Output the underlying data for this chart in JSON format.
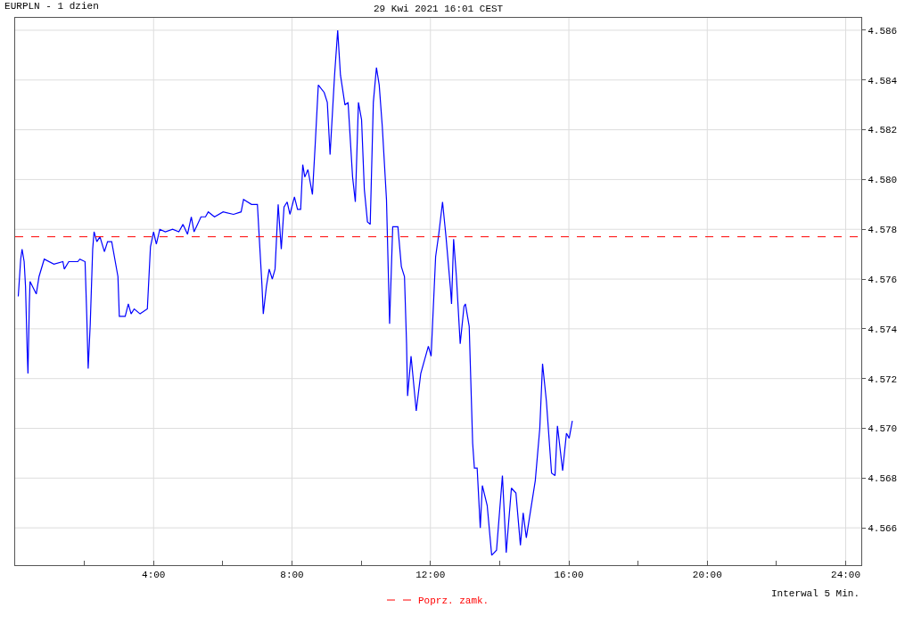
{
  "chart_data": {
    "type": "line",
    "title": "EURPLN - 1 dzien",
    "subtitle": "29 Kwi 2021 16:01 CEST",
    "annotations": [
      "Interwal 5 Min."
    ],
    "x": [
      0.09,
      0.16,
      0.2,
      0.26,
      0.3,
      0.35,
      0.37,
      0.41,
      0.43,
      0.61,
      0.69,
      0.84,
      1.12,
      1.38,
      1.42,
      1.55,
      1.81,
      1.87,
      2.02,
      2.07,
      2.11,
      2.17,
      2.24,
      2.28,
      2.36,
      2.45,
      2.58,
      2.67,
      2.79,
      2.97,
      3.01,
      3.18,
      3.27,
      3.35,
      3.44,
      3.61,
      3.82,
      3.91,
      4.0,
      4.08,
      4.18,
      4.34,
      4.55,
      4.73,
      4.85,
      4.98,
      5.09,
      5.17,
      5.37,
      5.5,
      5.58,
      5.76,
      6.01,
      6.31,
      6.53,
      6.6,
      6.83,
      7.0,
      7.04,
      7.13,
      7.17,
      7.26,
      7.34,
      7.43,
      7.51,
      7.6,
      7.69,
      7.77,
      7.86,
      7.94,
      8.07,
      8.16,
      8.25,
      8.31,
      8.37,
      8.46,
      8.59,
      8.67,
      8.76,
      8.93,
      9.02,
      9.1,
      9.23,
      9.32,
      9.4,
      9.53,
      9.62,
      9.75,
      9.83,
      9.92,
      10.01,
      10.09,
      10.18,
      10.26,
      10.35,
      10.44,
      10.52,
      10.61,
      10.73,
      10.82,
      10.91,
      11.06,
      11.16,
      11.25,
      11.31,
      11.34,
      11.44,
      11.59,
      11.72,
      11.94,
      12.02,
      12.15,
      12.24,
      12.35,
      12.45,
      12.58,
      12.61,
      12.67,
      12.75,
      12.86,
      12.97,
      13.01,
      13.12,
      13.22,
      13.27,
      13.35,
      13.44,
      13.5,
      13.64,
      13.77,
      13.91,
      14.08,
      14.19,
      14.34,
      14.47,
      14.6,
      14.68,
      14.77,
      15.03,
      15.16,
      15.24,
      15.35,
      15.5,
      15.6,
      15.67,
      15.82,
      15.93,
      16.01,
      16.1
    ],
    "series": [
      {
        "color": "#0000ff",
        "values": [
          4.5753,
          4.5768,
          4.5772,
          4.5767,
          4.5757,
          4.573,
          4.5722,
          4.575,
          4.5759,
          4.5754,
          4.5761,
          4.5768,
          4.5766,
          4.5767,
          4.5764,
          4.5767,
          4.5767,
          4.5768,
          4.5767,
          4.5745,
          4.5724,
          4.5742,
          4.5772,
          4.5779,
          4.5775,
          4.5777,
          4.5771,
          4.5775,
          4.5775,
          4.5761,
          4.5745,
          4.5745,
          4.575,
          4.5746,
          4.5748,
          4.5746,
          4.5748,
          4.5773,
          4.5779,
          4.5774,
          4.578,
          4.5779,
          4.578,
          4.5779,
          4.5782,
          4.5778,
          4.5785,
          4.5779,
          4.5785,
          4.5785,
          4.5787,
          4.5785,
          4.5787,
          4.5786,
          4.5787,
          4.5792,
          4.579,
          4.579,
          4.578,
          4.5758,
          4.5746,
          4.5757,
          4.5764,
          4.576,
          4.5764,
          4.579,
          4.5772,
          4.5789,
          4.5791,
          4.5786,
          4.5793,
          4.5788,
          4.5788,
          4.5806,
          4.5801,
          4.5804,
          4.5794,
          4.5814,
          4.5838,
          4.5835,
          4.5831,
          4.581,
          4.5842,
          4.586,
          4.5842,
          4.583,
          4.5831,
          4.5801,
          4.5791,
          4.5831,
          4.5824,
          4.5796,
          4.5783,
          4.5782,
          4.5831,
          4.5845,
          4.5838,
          4.5821,
          4.5792,
          4.5742,
          4.5781,
          4.5781,
          4.5765,
          4.5761,
          4.5734,
          4.5713,
          4.5729,
          4.5707,
          4.5722,
          4.5733,
          4.5729,
          4.5769,
          4.5778,
          4.5791,
          4.5777,
          4.5756,
          4.575,
          4.5776,
          4.5761,
          4.5734,
          4.5749,
          4.575,
          4.5741,
          4.5694,
          4.5684,
          4.5684,
          4.566,
          4.5677,
          4.5669,
          4.5649,
          4.5651,
          4.5681,
          4.565,
          4.5676,
          4.5674,
          4.5653,
          4.5666,
          4.5656,
          4.5679,
          4.57,
          4.5726,
          4.5711,
          4.5682,
          4.5681,
          4.5701,
          4.5683,
          4.5698,
          4.5696,
          4.5703
        ]
      }
    ],
    "xlim": [
      0,
      24.45
    ],
    "xticks": [
      {
        "value": 2,
        "label": null
      },
      {
        "value": 4,
        "label": "4:00"
      },
      {
        "value": 6,
        "label": null
      },
      {
        "value": 8,
        "label": "8:00"
      },
      {
        "value": 10,
        "label": null
      },
      {
        "value": 12,
        "label": "12:00"
      },
      {
        "value": 14,
        "label": null
      },
      {
        "value": 16,
        "label": "16:00"
      },
      {
        "value": 18,
        "label": null
      },
      {
        "value": 20,
        "label": "20:00"
      },
      {
        "value": 22,
        "label": null
      },
      {
        "value": 24,
        "label": "24:00"
      }
    ],
    "ylim": [
      4.5645,
      4.5865
    ],
    "yticks": [
      4.566,
      4.568,
      {
        "value": 4.57,
        "label": "4.570"
      },
      4.572,
      4.574,
      4.576,
      4.578,
      {
        "value": 4.58,
        "label": "4.580"
      },
      4.582,
      4.584,
      4.586
    ],
    "ref_lines": [
      {
        "axis": "y",
        "value": 4.5777,
        "label": "Poprz. zamk.",
        "color": "#ff0000",
        "line_style": "dashed"
      }
    ],
    "grid": true,
    "legend": "bottom",
    "marker": "none",
    "line_style": "solid"
  }
}
